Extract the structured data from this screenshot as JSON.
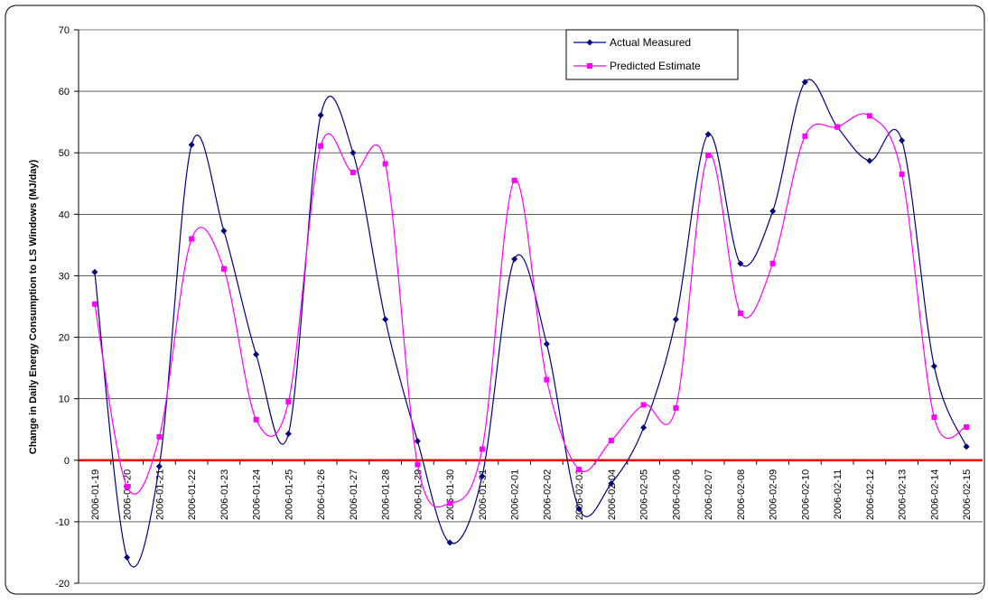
{
  "chart_data": {
    "type": "line",
    "y_label": "Change in Daily Energy Consumption to LS Windows (MJ/day)",
    "categories": [
      "2006-01-19",
      "2006-01-20",
      "2006-01-21",
      "2006-01-22",
      "2006-01-23",
      "2006-01-24",
      "2006-01-25",
      "2006-01-26",
      "2006-01-27",
      "2006-01-28",
      "2006-01-29",
      "2006-01-30",
      "2006-01-31",
      "2006-02-01",
      "2006-02-02",
      "2006-02-03",
      "2006-02-04",
      "2006-02-05",
      "2006-02-06",
      "2006-02-07",
      "2006-02-08",
      "2006-02-09",
      "2006-02-10",
      "2006-02-11",
      "2006-02-12",
      "2006-02-13",
      "2006-02-14",
      "2006-02-15"
    ],
    "series": [
      {
        "name": "Actual Measured",
        "color": "#000080",
        "marker": "diamond",
        "values": [
          30.6,
          -15.8,
          -1,
          51.3,
          37.3,
          17.2,
          4.3,
          56.1,
          50,
          22.9,
          3.1,
          -13.4,
          -2.6,
          32.7,
          18.9,
          -7.9,
          -3.8,
          5.3,
          22.9,
          53,
          32,
          40.5,
          61.5,
          54.2,
          48.7,
          52,
          15.3,
          2.2
        ]
      },
      {
        "name": "Predicted Estimate",
        "color": "#ff00ff",
        "marker": "square",
        "values": [
          25.4,
          -4.3,
          3.8,
          36,
          31.1,
          6.6,
          9.5,
          51.1,
          46.8,
          48.2,
          -0.7,
          -7,
          1.8,
          45.5,
          13.1,
          -1.5,
          3.2,
          9,
          8.5,
          49.6,
          23.9,
          32,
          52.7,
          54.2,
          56,
          46.5,
          7,
          5.4
        ]
      }
    ],
    "ylim": [
      -20,
      70
    ],
    "yticks": [
      -20,
      -10,
      0,
      10,
      20,
      30,
      40,
      50,
      60,
      70
    ],
    "grid": true,
    "smooth": true,
    "zero_line_color": "#ff0000",
    "legend": "top"
  }
}
